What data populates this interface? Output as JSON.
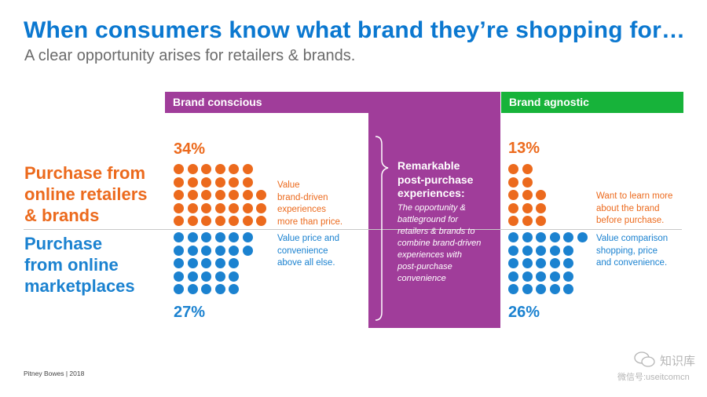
{
  "header": {
    "title": "When consumers know what brand they’re shopping for…",
    "subtitle": "A clear opportunity arises for retailers & brands."
  },
  "columns": {
    "brand_conscious": "Brand conscious",
    "brand_agnostic": "Brand agnostic"
  },
  "rows": {
    "retailers": {
      "line1": "Purchase from",
      "line2": "online retailers",
      "line3": "& brands"
    },
    "marketplaces": {
      "line1": "Purchase",
      "line2": "from online",
      "line3": "marketplaces"
    }
  },
  "brand_conscious": {
    "retailers_pct": "34%",
    "retailers_desc": [
      "Value",
      "brand-driven",
      "experiences",
      "more than price."
    ],
    "marketplaces_pct": "27%",
    "marketplaces_desc": [
      "Value price and",
      "convenience",
      "above all else."
    ]
  },
  "brand_agnostic": {
    "retailers_pct": "13%",
    "retailers_desc": [
      "Want to learn more",
      "about the brand",
      "before purchase."
    ],
    "marketplaces_pct": "26%",
    "marketplaces_desc": [
      "Value comparison",
      "shopping, price",
      "and convenience."
    ]
  },
  "middle": {
    "title": [
      "Remarkable",
      "post-purchase",
      "experiences:"
    ],
    "body": [
      "The opportunity &",
      "battleground for",
      "retailers & brands to",
      "combine brand-driven",
      "experiences with",
      "post-purchase",
      "convenience"
    ]
  },
  "dot_counts": {
    "brand_conscious_retailers": [
      6,
      6,
      7,
      7,
      7
    ],
    "brand_conscious_marketplaces": [
      6,
      6,
      5,
      5,
      5
    ],
    "brand_agnostic_retailers": [
      2,
      2,
      3,
      3,
      3
    ],
    "brand_agnostic_marketplaces": [
      6,
      5,
      5,
      5,
      5
    ]
  },
  "footer": "Pitney Bowes | 2018",
  "watermark": {
    "line1": "知识库",
    "line2": "微信号:useitcomcn"
  },
  "colors": {
    "title_blue": "#0b78d0",
    "orange": "#ec6a1d",
    "blue": "#1b82d0",
    "purple": "#a03d9a",
    "green": "#17b33a"
  }
}
